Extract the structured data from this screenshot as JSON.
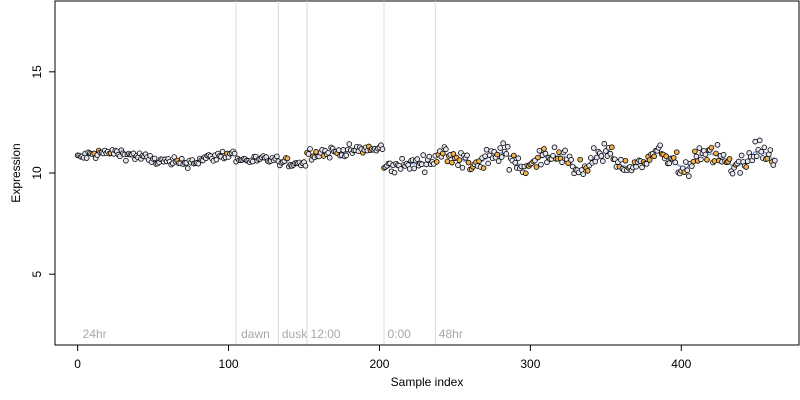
{
  "chart_data": {
    "type": "scatter",
    "title": "",
    "xlabel": "Sample index",
    "ylabel": "Expression",
    "xlim": [
      -15,
      478
    ],
    "ylim": [
      1.5,
      18.5
    ],
    "xticks": [
      0,
      100,
      200,
      300,
      400
    ],
    "yticks": [
      5,
      10,
      15
    ],
    "grid": false,
    "legend": "none",
    "colors": {
      "point_fill": "#e8e8f4",
      "highlight_fill": "#f6b04a",
      "fit_line": "#8fb0e3",
      "separator": "#d9d9d9",
      "region_label": "#a8a8a8"
    },
    "separators": [
      105,
      133,
      152,
      203,
      237
    ],
    "regions": [
      {
        "label": "24hr",
        "x": 2
      },
      {
        "label": "dawn",
        "x": 107
      },
      {
        "label": "dusk",
        "x": 134
      },
      {
        "label": "12:00",
        "x": 153
      },
      {
        "label": "0:00",
        "x": 204
      },
      {
        "label": "48hr",
        "x": 238
      }
    ],
    "segments": [
      {
        "x0": 0,
        "x1": 104,
        "base": 10.75,
        "noise": 0.18,
        "hl": 0.04
      },
      {
        "x0": 105,
        "x1": 132,
        "base": 10.65,
        "noise": 0.15,
        "hl": 0.03
      },
      {
        "x0": 133,
        "x1": 151,
        "base": 10.5,
        "noise": 0.15,
        "hl": 0.05
      },
      {
        "x0": 152,
        "x1": 202,
        "base": 10.95,
        "noise": 0.2,
        "hl": 0.08
      },
      {
        "x0": 203,
        "x1": 236,
        "base": 10.25,
        "noise": 0.25,
        "hl": 0.02
      },
      {
        "x0": 237,
        "x1": 462,
        "base": 10.65,
        "noise": 0.38,
        "hl": 0.15
      }
    ]
  }
}
